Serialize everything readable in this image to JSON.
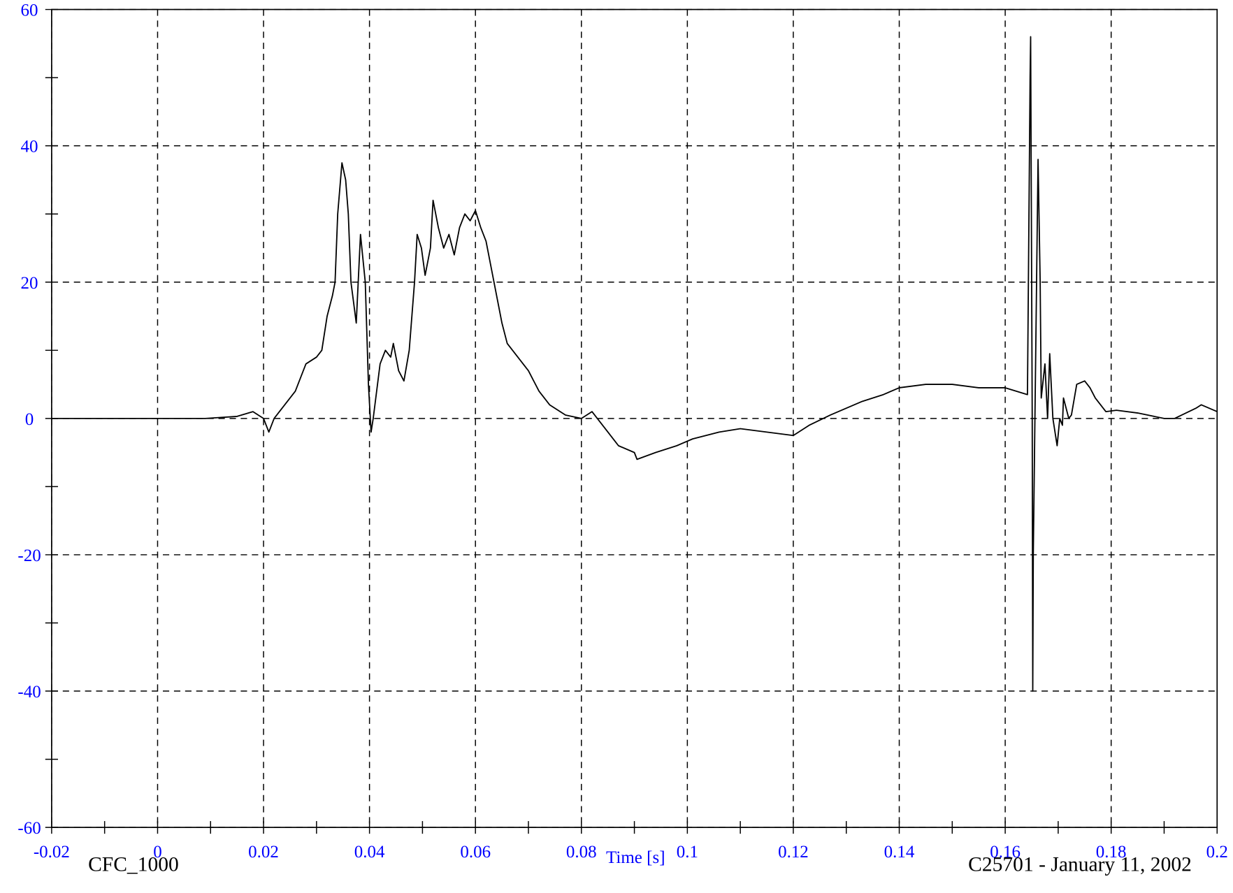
{
  "chart_data": {
    "type": "line",
    "x_label": "Time [s]",
    "footer_left": "CFC_1000",
    "footer_right": "C25701 - January 11, 2002",
    "xlim": [
      -0.02,
      0.2
    ],
    "ylim": [
      -60,
      60
    ],
    "xticks": [
      -0.02,
      0,
      0.02,
      0.04,
      0.06,
      0.08,
      0.1,
      0.12,
      0.14,
      0.16,
      0.18,
      0.2
    ],
    "yticks": [
      -60,
      -40,
      -20,
      0,
      20,
      40,
      60
    ],
    "xminorticks": [
      -0.01,
      0.01,
      0.03,
      0.05,
      0.07,
      0.09,
      0.11,
      0.13,
      0.15,
      0.17,
      0.19
    ],
    "yminorticks": [
      -50,
      -30,
      -10,
      10,
      30,
      50
    ],
    "grid": true,
    "tick_label_color": "#0000ff",
    "series": [
      {
        "color": "#000000",
        "x": [
          -0.02,
          -0.013,
          0.009,
          0.015,
          0.018,
          0.02,
          0.021,
          0.022,
          0.024,
          0.026,
          0.027,
          0.028,
          0.029,
          0.03,
          0.031,
          0.032,
          0.033,
          0.0335,
          0.034,
          0.0348,
          0.0355,
          0.036,
          0.0365,
          0.037,
          0.0375,
          0.0383,
          0.0392,
          0.0398,
          0.0403,
          0.0407,
          0.042,
          0.043,
          0.044,
          0.0445,
          0.0455,
          0.0465,
          0.0475,
          0.0485,
          0.049,
          0.0498,
          0.0505,
          0.0515,
          0.052,
          0.053,
          0.054,
          0.055,
          0.056,
          0.057,
          0.058,
          0.059,
          0.06,
          0.061,
          0.062,
          0.063,
          0.064,
          0.065,
          0.066,
          0.068,
          0.07,
          0.072,
          0.074,
          0.077,
          0.08,
          0.082,
          0.085,
          0.087,
          0.09,
          0.0905,
          0.094,
          0.098,
          0.101,
          0.106,
          0.11,
          0.115,
          0.12,
          0.123,
          0.127,
          0.13,
          0.133,
          0.137,
          0.14,
          0.145,
          0.15,
          0.155,
          0.16,
          0.1642,
          0.1647,
          0.1648,
          0.1651,
          0.1652,
          0.1653,
          0.1662,
          0.1666,
          0.1668,
          0.1675,
          0.168,
          0.1684,
          0.169,
          0.1698,
          0.1703,
          0.1708,
          0.171,
          0.172,
          0.1725,
          0.1735,
          0.175,
          0.176,
          0.177,
          0.178,
          0.179,
          0.181,
          0.185,
          0.19,
          0.192,
          0.196,
          0.197,
          0.2
        ],
        "values": [
          0,
          0,
          0,
          0.3,
          1,
          0,
          -2,
          0,
          2,
          4,
          6,
          8,
          8.5,
          9,
          10,
          15,
          18,
          20,
          30,
          37.5,
          35,
          30,
          20,
          17,
          14,
          27,
          20,
          5,
          -2,
          0,
          8,
          10,
          9,
          11,
          7,
          5.5,
          10,
          20,
          27,
          25,
          21,
          25,
          32,
          28,
          25,
          27,
          24,
          28,
          30,
          29,
          30.5,
          28,
          26,
          22,
          18,
          14,
          11,
          9,
          7,
          4,
          2,
          0.5,
          0,
          1,
          -2,
          -4,
          -5,
          -6,
          -5,
          -4,
          -3,
          -2,
          -1.5,
          -2,
          -2.5,
          -1,
          0.5,
          1.5,
          2.5,
          3.5,
          4.5,
          5,
          5,
          4.5,
          4.5,
          3.5,
          50,
          56,
          0,
          -40,
          -20,
          38,
          20,
          3,
          8,
          0,
          9.5,
          0,
          -4,
          0,
          -1,
          3,
          0,
          0.5,
          5,
          5.5,
          4.5,
          3,
          2,
          1,
          1.2,
          0.8,
          0,
          0,
          1.5,
          2,
          1
        ]
      }
    ]
  }
}
